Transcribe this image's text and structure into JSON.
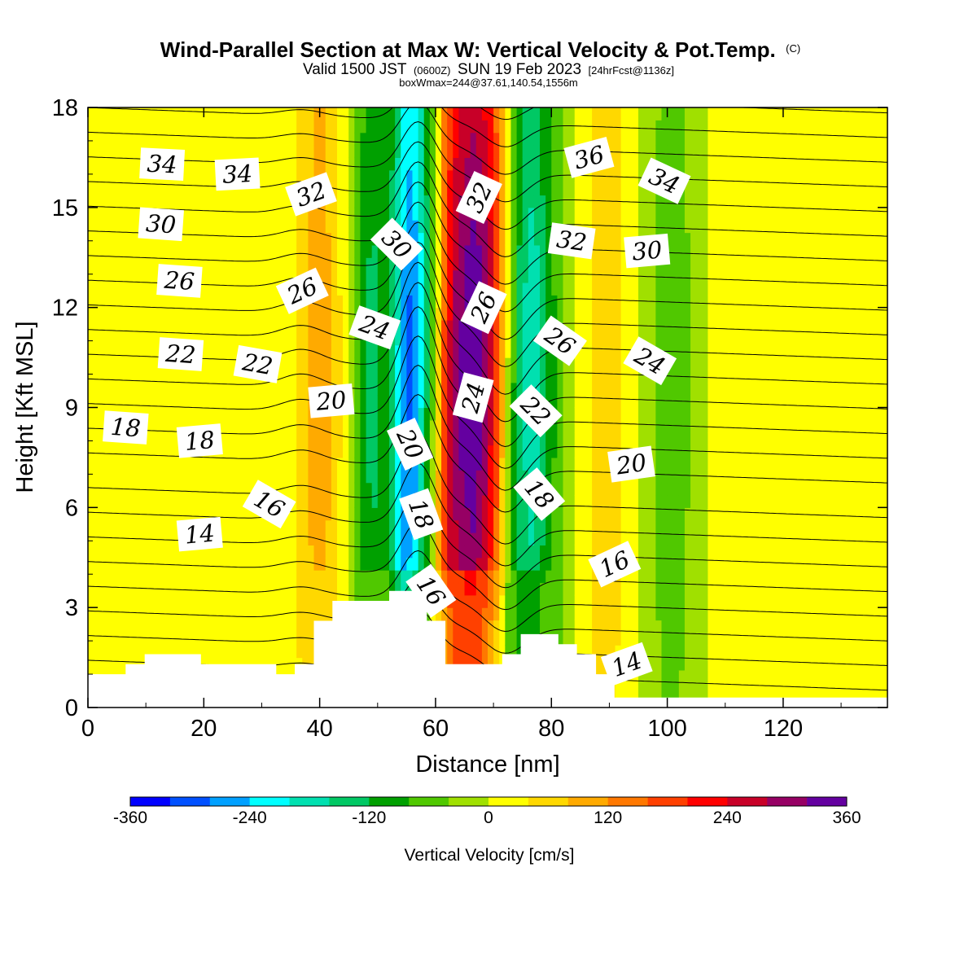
{
  "title": {
    "main": "Wind-Parallel Section at Max W: Vertical Velocity & Pot.Temp.",
    "copyright": "(C)",
    "valid_a": "Valid 1500 JST",
    "valid_zulu": "(0600Z)",
    "valid_b": "SUN 19 Feb 2023",
    "forecast": "[24hrFcst@1136z]",
    "box": "boxWmax=244@37.61,140.54,1556m"
  },
  "chart_data": {
    "type": "heatmap",
    "xlabel": "Distance [nm]",
    "ylabel": "Height [Kft MSL]",
    "xlim": [
      0,
      138
    ],
    "ylim": [
      0,
      18
    ],
    "xticks": [
      0,
      20,
      40,
      60,
      80,
      100,
      120
    ],
    "yticks": [
      0,
      3,
      6,
      9,
      12,
      15,
      18
    ],
    "colorbar": {
      "label": "Vertical Velocity [cm/s]",
      "range": [
        -360,
        360
      ],
      "step": 40,
      "tick_values": [
        -360,
        -240,
        -120,
        0,
        120,
        240,
        360
      ],
      "colors": [
        "#0000ff",
        "#0050ff",
        "#00a0ff",
        "#00ffff",
        "#00e0b0",
        "#00c864",
        "#00a000",
        "#50c800",
        "#a0e000",
        "#ffff00",
        "#ffd800",
        "#ffaa00",
        "#ff7800",
        "#ff4000",
        "#ff0000",
        "#c80028",
        "#960064",
        "#6400a0"
      ]
    },
    "vertical_velocity_columns": [
      {
        "x": 0,
        "w": 5
      },
      {
        "x": 2,
        "w": 18
      },
      {
        "x": 6,
        "w": 5
      },
      {
        "x": 10,
        "w": 15
      },
      {
        "x": 14,
        "w": 3
      },
      {
        "x": 19,
        "w": 5
      },
      {
        "x": 23,
        "w": 40
      },
      {
        "x": 26,
        "w": 5
      },
      {
        "x": 30,
        "w": 5
      },
      {
        "x": 34,
        "w": 15
      },
      {
        "x": 37,
        "w": 60
      },
      {
        "x": 40,
        "w": 120
      },
      {
        "x": 43,
        "w": 55
      },
      {
        "x": 45,
        "w": 0
      },
      {
        "x": 47,
        "w": -90
      },
      {
        "x": 49,
        "w": -140
      },
      {
        "x": 51,
        "w": -100
      },
      {
        "x": 53,
        "w": -160
      },
      {
        "x": 55,
        "w": -300
      },
      {
        "x": 57,
        "w": -260
      },
      {
        "x": 58.5,
        "w": -140
      },
      {
        "x": 60,
        "w": -20
      },
      {
        "x": 61.5,
        "w": 160
      },
      {
        "x": 63,
        "w": 280
      },
      {
        "x": 65,
        "w": 340
      },
      {
        "x": 67,
        "w": 360
      },
      {
        "x": 69,
        "w": 300
      },
      {
        "x": 71,
        "w": 170
      },
      {
        "x": 73,
        "w": -40
      },
      {
        "x": 75,
        "w": -160
      },
      {
        "x": 77,
        "w": -190
      },
      {
        "x": 79,
        "w": -120
      },
      {
        "x": 81,
        "w": -70
      },
      {
        "x": 83,
        "w": -20
      },
      {
        "x": 85,
        "w": 10
      },
      {
        "x": 88,
        "w": 70
      },
      {
        "x": 91,
        "w": 60
      },
      {
        "x": 94,
        "w": 10
      },
      {
        "x": 97,
        "w": -30
      },
      {
        "x": 100,
        "w": -70
      },
      {
        "x": 103,
        "w": -50
      },
      {
        "x": 106,
        "w": -10
      },
      {
        "x": 109,
        "w": 10
      },
      {
        "x": 113,
        "w": 30
      },
      {
        "x": 117,
        "w": 40
      },
      {
        "x": 121,
        "w": 20
      },
      {
        "x": 125,
        "w": 10
      },
      {
        "x": 129,
        "w": 15
      },
      {
        "x": 133,
        "w": 30
      },
      {
        "x": 138,
        "w": 10
      }
    ],
    "terrain": [
      [
        0,
        1.0
      ],
      [
        6.5,
        1.0
      ],
      [
        6.5,
        1.3
      ],
      [
        9.8,
        1.3
      ],
      [
        9.8,
        1.6
      ],
      [
        19.5,
        1.6
      ],
      [
        19.5,
        1.3
      ],
      [
        32.5,
        1.3
      ],
      [
        32.5,
        1.0
      ],
      [
        35.7,
        1.0
      ],
      [
        35.7,
        1.3
      ],
      [
        39,
        1.3
      ],
      [
        39,
        2.6
      ],
      [
        42.2,
        2.6
      ],
      [
        42.2,
        3.2
      ],
      [
        52,
        3.2
      ],
      [
        52,
        3.5
      ],
      [
        58.5,
        3.5
      ],
      [
        58.5,
        2.6
      ],
      [
        61.7,
        2.6
      ],
      [
        61.7,
        1.3
      ],
      [
        71.5,
        1.3
      ],
      [
        71.5,
        1.6
      ],
      [
        74.7,
        1.6
      ],
      [
        74.7,
        2.2
      ],
      [
        81.2,
        2.2
      ],
      [
        81.2,
        1.9
      ],
      [
        84.4,
        1.9
      ],
      [
        84.4,
        1.6
      ],
      [
        87.7,
        1.6
      ],
      [
        87.7,
        1.0
      ],
      [
        90.9,
        1.0
      ],
      [
        90.9,
        0.3
      ],
      [
        138,
        0.3
      ]
    ],
    "theta_contours": {
      "levels_min": 13,
      "levels_max": 37,
      "step": 1,
      "labels": [
        {
          "text": "34",
          "x": 12.8,
          "y": 16.3,
          "rot": 3
        },
        {
          "text": "34",
          "x": 25.8,
          "y": 16.0,
          "rot": -3
        },
        {
          "text": "32",
          "x": 38.5,
          "y": 15.4,
          "rot": -20
        },
        {
          "text": "30",
          "x": 12.6,
          "y": 14.5,
          "rot": 4
        },
        {
          "text": "26",
          "x": 15.8,
          "y": 12.8,
          "rot": 4
        },
        {
          "text": "26",
          "x": 37.0,
          "y": 12.5,
          "rot": -25
        },
        {
          "text": "30",
          "x": 53.3,
          "y": 13.9,
          "rot": 45
        },
        {
          "text": "32",
          "x": 67.5,
          "y": 15.3,
          "rot": -65
        },
        {
          "text": "26",
          "x": 68.3,
          "y": 12.0,
          "rot": -65
        },
        {
          "text": "32",
          "x": 83.5,
          "y": 14.0,
          "rot": 8
        },
        {
          "text": "30",
          "x": 96.5,
          "y": 13.7,
          "rot": -5
        },
        {
          "text": "36",
          "x": 86.5,
          "y": 16.5,
          "rot": -15
        },
        {
          "text": "34",
          "x": 99.5,
          "y": 15.8,
          "rot": 25
        },
        {
          "text": "24",
          "x": 49.5,
          "y": 11.4,
          "rot": 20
        },
        {
          "text": "26",
          "x": 81.5,
          "y": 11.0,
          "rot": 35
        },
        {
          "text": "22",
          "x": 16.0,
          "y": 10.6,
          "rot": 4
        },
        {
          "text": "22",
          "x": 29.3,
          "y": 10.3,
          "rot": 10
        },
        {
          "text": "24",
          "x": 97.0,
          "y": 10.4,
          "rot": 30
        },
        {
          "text": "20",
          "x": 42.0,
          "y": 9.2,
          "rot": -5
        },
        {
          "text": "24",
          "x": 66.5,
          "y": 9.3,
          "rot": -75
        },
        {
          "text": "22",
          "x": 77.3,
          "y": 8.9,
          "rot": 45
        },
        {
          "text": "18",
          "x": 6.5,
          "y": 8.4,
          "rot": 4
        },
        {
          "text": "18",
          "x": 19.3,
          "y": 8.0,
          "rot": -5
        },
        {
          "text": "20",
          "x": 55.6,
          "y": 7.9,
          "rot": 65
        },
        {
          "text": "20",
          "x": 93.8,
          "y": 7.3,
          "rot": -8
        },
        {
          "text": "16",
          "x": 31.3,
          "y": 6.1,
          "rot": 30
        },
        {
          "text": "18",
          "x": 57.5,
          "y": 5.8,
          "rot": 70
        },
        {
          "text": "18",
          "x": 77.9,
          "y": 6.4,
          "rot": 50
        },
        {
          "text": "14",
          "x": 19.3,
          "y": 5.2,
          "rot": -5
        },
        {
          "text": "16",
          "x": 90.9,
          "y": 4.3,
          "rot": -25
        },
        {
          "text": "16",
          "x": 59.2,
          "y": 3.5,
          "rot": 55
        },
        {
          "text": "14",
          "x": 93.0,
          "y": 1.3,
          "rot": -20
        }
      ]
    }
  }
}
